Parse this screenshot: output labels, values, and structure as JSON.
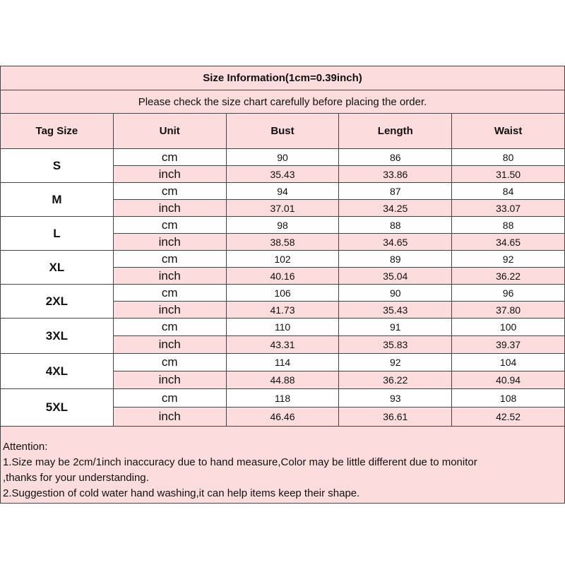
{
  "title": "Size Information(1cm=0.39inch)",
  "subtitle": "Please check the size chart carefully before placing the order.",
  "headers": [
    "Tag Size",
    "Unit",
    "Bust",
    "Length",
    "Waist"
  ],
  "colors": {
    "pink": "#fcdcdc",
    "border": "#444444"
  },
  "sizes": [
    {
      "tag": "S",
      "cm": [
        "90",
        "86",
        "80"
      ],
      "inch": [
        "35.43",
        "33.86",
        "31.50"
      ]
    },
    {
      "tag": "M",
      "cm": [
        "94",
        "87",
        "84"
      ],
      "inch": [
        "37.01",
        "34.25",
        "33.07"
      ]
    },
    {
      "tag": "L",
      "cm": [
        "98",
        "88",
        "88"
      ],
      "inch": [
        "38.58",
        "34.65",
        "34.65"
      ]
    },
    {
      "tag": "XL",
      "cm": [
        "102",
        "89",
        "92"
      ],
      "inch": [
        "40.16",
        "35.04",
        "36.22"
      ]
    },
    {
      "tag": "2XL",
      "cm": [
        "106",
        "90",
        "96"
      ],
      "inch": [
        "41.73",
        "35.43",
        "37.80"
      ]
    },
    {
      "tag": "3XL",
      "cm": [
        "110",
        "91",
        "100"
      ],
      "inch": [
        "43.31",
        "35.83",
        "39.37"
      ]
    },
    {
      "tag": "4XL",
      "cm": [
        "114",
        "92",
        "104"
      ],
      "inch": [
        "44.88",
        "36.22",
        "40.94"
      ]
    },
    {
      "tag": "5XL",
      "cm": [
        "118",
        "93",
        "108"
      ],
      "inch": [
        "46.46",
        "36.61",
        "42.52"
      ]
    }
  ],
  "units": {
    "cm": "cm",
    "inch": "inch"
  },
  "notes": [
    "Attention:",
    "1.Size may be 2cm/1inch inaccuracy due to hand measure,Color may be little different due to monitor",
    ",thanks for your understanding.",
    "2.Suggestion of cold water hand washing,it can help items keep their shape."
  ]
}
